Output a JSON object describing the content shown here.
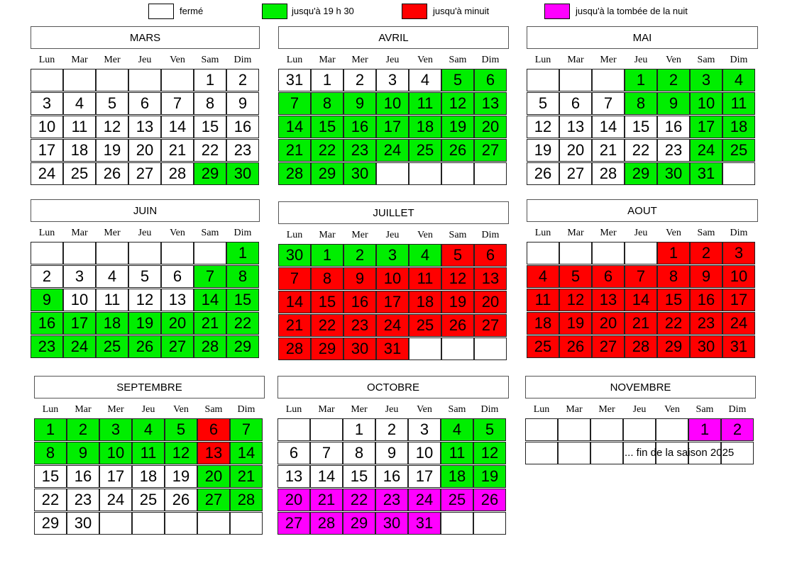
{
  "legend": {
    "items": [
      {
        "label": "fermé",
        "color": "#ffffff"
      },
      {
        "label": "jusqu'à 19 h 30",
        "color": "#00ee00"
      },
      {
        "label": "jusqu'à minuit",
        "color": "#ff0000"
      },
      {
        "label": "jusqu'à la tombée de la nuit",
        "color": "#ff00ff"
      }
    ]
  },
  "weekdays": [
    "Lun",
    "Mar",
    "Mer",
    "Jeu",
    "Ven",
    "Sam",
    "Dim"
  ],
  "months": [
    {
      "name": "MARS",
      "rows": [
        [
          [
            "",
            0
          ],
          [
            "",
            0
          ],
          [
            "",
            0
          ],
          [
            "",
            0
          ],
          [
            "",
            0
          ],
          [
            "1",
            0
          ],
          [
            "2",
            0
          ]
        ],
        [
          [
            "3",
            0
          ],
          [
            "4",
            0
          ],
          [
            "5",
            0
          ],
          [
            "6",
            0
          ],
          [
            "7",
            0
          ],
          [
            "8",
            0
          ],
          [
            "9",
            0
          ]
        ],
        [
          [
            "10",
            0
          ],
          [
            "11",
            0
          ],
          [
            "12",
            0
          ],
          [
            "13",
            0
          ],
          [
            "14",
            0
          ],
          [
            "15",
            0
          ],
          [
            "16",
            0
          ]
        ],
        [
          [
            "17",
            0
          ],
          [
            "18",
            0
          ],
          [
            "19",
            0
          ],
          [
            "20",
            0
          ],
          [
            "21",
            0
          ],
          [
            "22",
            0
          ],
          [
            "23",
            0
          ]
        ],
        [
          [
            "24",
            0
          ],
          [
            "25",
            0
          ],
          [
            "26",
            0
          ],
          [
            "27",
            0
          ],
          [
            "28",
            0
          ],
          [
            "29",
            1
          ],
          [
            "30",
            1
          ]
        ]
      ]
    },
    {
      "name": "AVRIL",
      "rows": [
        [
          [
            "31",
            0
          ],
          [
            "1",
            0
          ],
          [
            "2",
            0
          ],
          [
            "3",
            0
          ],
          [
            "4",
            0
          ],
          [
            "5",
            1
          ],
          [
            "6",
            1
          ]
        ],
        [
          [
            "7",
            1
          ],
          [
            "8",
            1
          ],
          [
            "9",
            1
          ],
          [
            "10",
            1
          ],
          [
            "11",
            1
          ],
          [
            "12",
            1
          ],
          [
            "13",
            1
          ]
        ],
        [
          [
            "14",
            1
          ],
          [
            "15",
            1
          ],
          [
            "16",
            1
          ],
          [
            "17",
            1
          ],
          [
            "18",
            1
          ],
          [
            "19",
            1
          ],
          [
            "20",
            1
          ]
        ],
        [
          [
            "21",
            1
          ],
          [
            "22",
            1
          ],
          [
            "23",
            1
          ],
          [
            "24",
            1
          ],
          [
            "25",
            1
          ],
          [
            "26",
            1
          ],
          [
            "27",
            1
          ]
        ],
        [
          [
            "28",
            1
          ],
          [
            "29",
            1
          ],
          [
            "30",
            1
          ],
          [
            "",
            0
          ],
          [
            "",
            0
          ],
          [
            "",
            0
          ],
          [
            "",
            0
          ]
        ]
      ]
    },
    {
      "name": "MAI",
      "rows": [
        [
          [
            "",
            0
          ],
          [
            "",
            0
          ],
          [
            "",
            0
          ],
          [
            "1",
            1
          ],
          [
            "2",
            1
          ],
          [
            "3",
            1
          ],
          [
            "4",
            1
          ]
        ],
        [
          [
            "5",
            0
          ],
          [
            "6",
            0
          ],
          [
            "7",
            0
          ],
          [
            "8",
            1
          ],
          [
            "9",
            1
          ],
          [
            "10",
            1
          ],
          [
            "11",
            1
          ]
        ],
        [
          [
            "12",
            0
          ],
          [
            "13",
            0
          ],
          [
            "14",
            0
          ],
          [
            "15",
            0
          ],
          [
            "16",
            0
          ],
          [
            "17",
            1
          ],
          [
            "18",
            1
          ]
        ],
        [
          [
            "19",
            0
          ],
          [
            "20",
            0
          ],
          [
            "21",
            0
          ],
          [
            "22",
            0
          ],
          [
            "23",
            0
          ],
          [
            "24",
            1
          ],
          [
            "25",
            1
          ]
        ],
        [
          [
            "26",
            0
          ],
          [
            "27",
            0
          ],
          [
            "28",
            0
          ],
          [
            "29",
            1
          ],
          [
            "30",
            1
          ],
          [
            "31",
            1
          ],
          [
            "",
            0
          ]
        ]
      ]
    },
    {
      "name": "JUIN",
      "rows": [
        [
          [
            "",
            0
          ],
          [
            "",
            0
          ],
          [
            "",
            0
          ],
          [
            "",
            0
          ],
          [
            "",
            0
          ],
          [
            "",
            0
          ],
          [
            "1",
            1
          ]
        ],
        [
          [
            "2",
            0
          ],
          [
            "3",
            0
          ],
          [
            "4",
            0
          ],
          [
            "5",
            0
          ],
          [
            "6",
            0
          ],
          [
            "7",
            1
          ],
          [
            "8",
            1
          ]
        ],
        [
          [
            "9",
            1
          ],
          [
            "10",
            0
          ],
          [
            "11",
            0
          ],
          [
            "12",
            0
          ],
          [
            "13",
            0
          ],
          [
            "14",
            1
          ],
          [
            "15",
            1
          ]
        ],
        [
          [
            "16",
            1
          ],
          [
            "17",
            1
          ],
          [
            "18",
            1
          ],
          [
            "19",
            1
          ],
          [
            "20",
            1
          ],
          [
            "21",
            1
          ],
          [
            "22",
            1
          ]
        ],
        [
          [
            "23",
            1
          ],
          [
            "24",
            1
          ],
          [
            "25",
            1
          ],
          [
            "26",
            1
          ],
          [
            "27",
            1
          ],
          [
            "28",
            1
          ],
          [
            "29",
            1
          ]
        ]
      ]
    },
    {
      "name": "JUILLET",
      "rows": [
        [
          [
            "30",
            1
          ],
          [
            "1",
            1
          ],
          [
            "2",
            1
          ],
          [
            "3",
            1
          ],
          [
            "4",
            1
          ],
          [
            "5",
            2
          ],
          [
            "6",
            2
          ]
        ],
        [
          [
            "7",
            2
          ],
          [
            "8",
            2
          ],
          [
            "9",
            2
          ],
          [
            "10",
            2
          ],
          [
            "11",
            2
          ],
          [
            "12",
            2
          ],
          [
            "13",
            2
          ]
        ],
        [
          [
            "14",
            2
          ],
          [
            "15",
            2
          ],
          [
            "16",
            2
          ],
          [
            "17",
            2
          ],
          [
            "18",
            2
          ],
          [
            "19",
            2
          ],
          [
            "20",
            2
          ]
        ],
        [
          [
            "21",
            2
          ],
          [
            "22",
            2
          ],
          [
            "23",
            2
          ],
          [
            "24",
            2
          ],
          [
            "25",
            2
          ],
          [
            "26",
            2
          ],
          [
            "27",
            2
          ]
        ],
        [
          [
            "28",
            2
          ],
          [
            "29",
            2
          ],
          [
            "30",
            2
          ],
          [
            "31",
            2
          ],
          [
            "",
            0
          ],
          [
            "",
            0
          ],
          [
            "",
            0
          ]
        ]
      ]
    },
    {
      "name": "AOUT",
      "rows": [
        [
          [
            "",
            0
          ],
          [
            "",
            0
          ],
          [
            "",
            0
          ],
          [
            "",
            0
          ],
          [
            "1",
            2
          ],
          [
            "2",
            2
          ],
          [
            "3",
            2
          ]
        ],
        [
          [
            "4",
            2
          ],
          [
            "5",
            2
          ],
          [
            "6",
            2
          ],
          [
            "7",
            2
          ],
          [
            "8",
            2
          ],
          [
            "9",
            2
          ],
          [
            "10",
            2
          ]
        ],
        [
          [
            "11",
            2
          ],
          [
            "12",
            2
          ],
          [
            "13",
            2
          ],
          [
            "14",
            2
          ],
          [
            "15",
            2
          ],
          [
            "16",
            2
          ],
          [
            "17",
            2
          ]
        ],
        [
          [
            "18",
            2
          ],
          [
            "19",
            2
          ],
          [
            "20",
            2
          ],
          [
            "21",
            2
          ],
          [
            "22",
            2
          ],
          [
            "23",
            2
          ],
          [
            "24",
            2
          ]
        ],
        [
          [
            "25",
            2
          ],
          [
            "26",
            2
          ],
          [
            "27",
            2
          ],
          [
            "28",
            2
          ],
          [
            "29",
            2
          ],
          [
            "30",
            2
          ],
          [
            "31",
            2
          ]
        ]
      ]
    },
    {
      "name": "SEPTEMBRE",
      "rows": [
        [
          [
            "1",
            1
          ],
          [
            "2",
            1
          ],
          [
            "3",
            1
          ],
          [
            "4",
            1
          ],
          [
            "5",
            1
          ],
          [
            "6",
            2
          ],
          [
            "7",
            1
          ]
        ],
        [
          [
            "8",
            1
          ],
          [
            "9",
            1
          ],
          [
            "10",
            1
          ],
          [
            "11",
            1
          ],
          [
            "12",
            1
          ],
          [
            "13",
            2
          ],
          [
            "14",
            1
          ]
        ],
        [
          [
            "15",
            0
          ],
          [
            "16",
            0
          ],
          [
            "17",
            0
          ],
          [
            "18",
            0
          ],
          [
            "19",
            0
          ],
          [
            "20",
            1
          ],
          [
            "21",
            1
          ]
        ],
        [
          [
            "22",
            0
          ],
          [
            "23",
            0
          ],
          [
            "24",
            0
          ],
          [
            "25",
            0
          ],
          [
            "26",
            0
          ],
          [
            "27",
            1
          ],
          [
            "28",
            1
          ]
        ],
        [
          [
            "29",
            0
          ],
          [
            "30",
            0
          ],
          [
            "",
            0
          ],
          [
            "",
            0
          ],
          [
            "",
            0
          ],
          [
            "",
            0
          ],
          [
            "",
            0
          ]
        ]
      ]
    },
    {
      "name": "OCTOBRE",
      "rows": [
        [
          [
            "",
            0
          ],
          [
            "",
            0
          ],
          [
            "1",
            0
          ],
          [
            "2",
            0
          ],
          [
            "3",
            0
          ],
          [
            "4",
            1
          ],
          [
            "5",
            1
          ]
        ],
        [
          [
            "6",
            0
          ],
          [
            "7",
            0
          ],
          [
            "8",
            0
          ],
          [
            "9",
            0
          ],
          [
            "10",
            0
          ],
          [
            "11",
            1
          ],
          [
            "12",
            1
          ]
        ],
        [
          [
            "13",
            0
          ],
          [
            "14",
            0
          ],
          [
            "15",
            0
          ],
          [
            "16",
            0
          ],
          [
            "17",
            0
          ],
          [
            "18",
            1
          ],
          [
            "19",
            1
          ]
        ],
        [
          [
            "20",
            3
          ],
          [
            "21",
            3
          ],
          [
            "22",
            3
          ],
          [
            "23",
            3
          ],
          [
            "24",
            3
          ],
          [
            "25",
            3
          ],
          [
            "26",
            3
          ]
        ],
        [
          [
            "27",
            3
          ],
          [
            "28",
            3
          ],
          [
            "29",
            3
          ],
          [
            "30",
            3
          ],
          [
            "31",
            3
          ],
          [
            "",
            0
          ],
          [
            "",
            0
          ]
        ]
      ]
    },
    {
      "name": "NOVEMBRE",
      "rows": [
        [
          [
            "",
            0
          ],
          [
            "",
            0
          ],
          [
            "",
            0
          ],
          [
            "",
            0
          ],
          [
            "",
            0
          ],
          [
            "1",
            3
          ],
          [
            "2",
            3
          ]
        ],
        [
          [
            "",
            0
          ],
          [
            "",
            0
          ],
          [
            "",
            0
          ],
          [
            "",
            0
          ],
          [
            "",
            0
          ],
          [
            "",
            0
          ],
          [
            "",
            0
          ]
        ]
      ],
      "note": "... fin de la saison 2025"
    }
  ]
}
